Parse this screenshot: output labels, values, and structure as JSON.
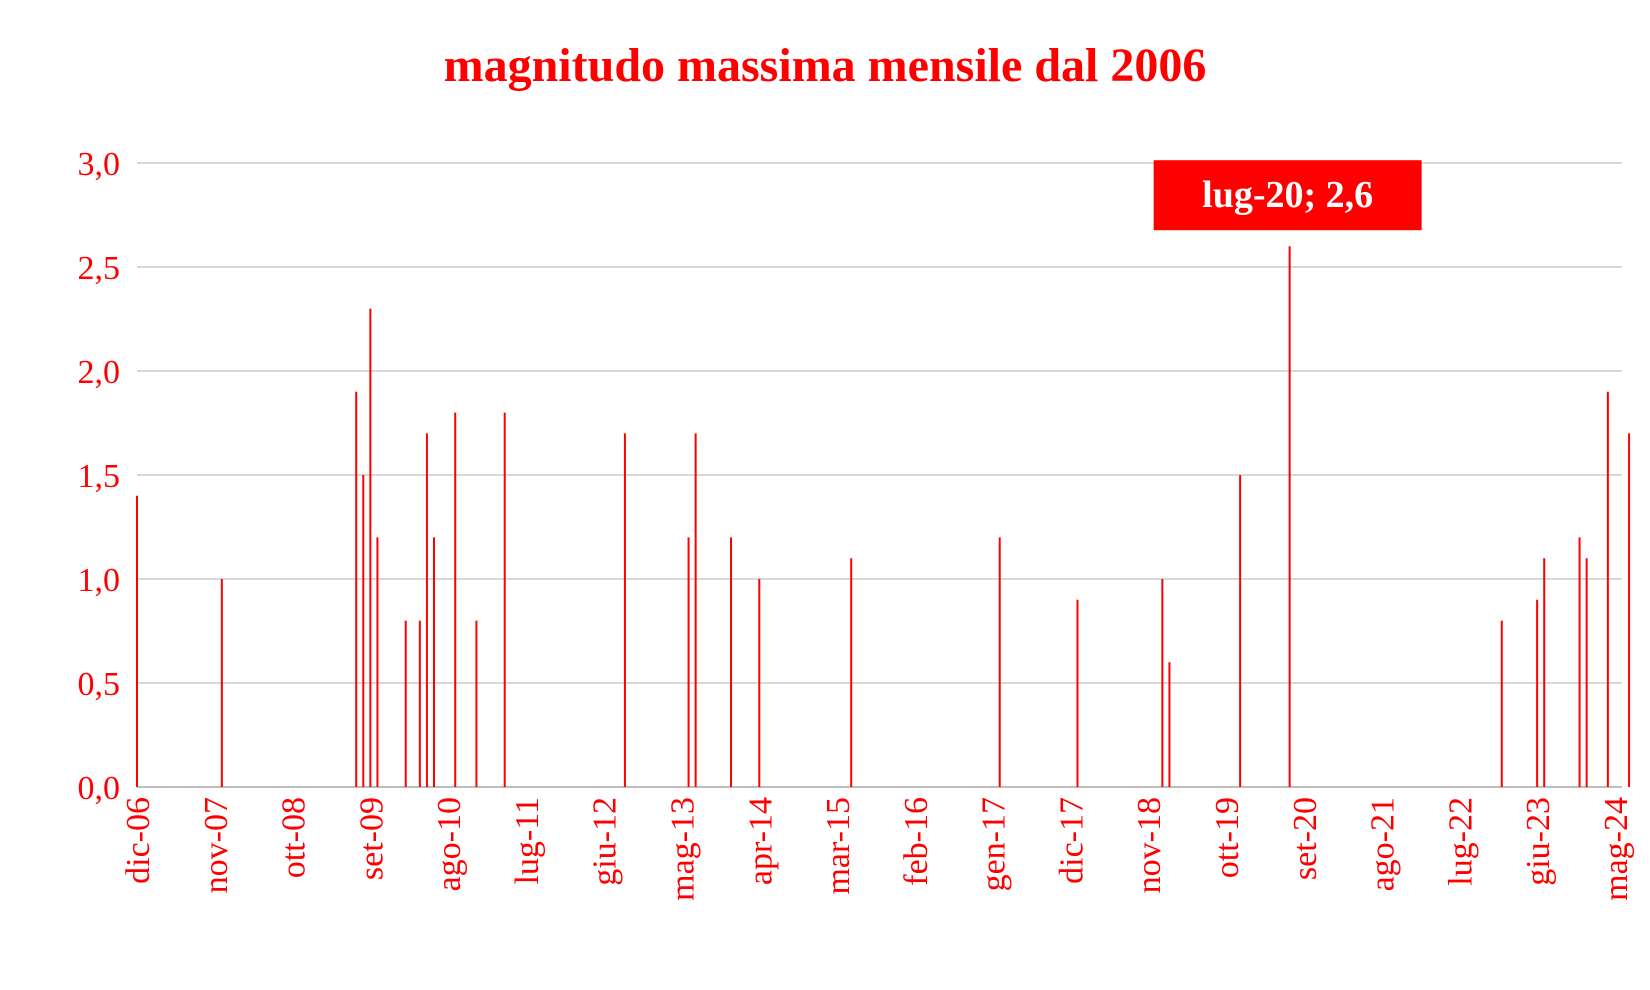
{
  "chart_data": {
    "type": "bar",
    "title": "magnitudo massima mensile dal 2006",
    "xlabel": "",
    "ylabel": "",
    "ylim": [
      0,
      3.0
    ],
    "y_ticks": [
      "0,0",
      "0,5",
      "1,0",
      "1,5",
      "2,0",
      "2,5",
      "3,0"
    ],
    "y_tick_values": [
      0,
      0.5,
      1.0,
      1.5,
      2.0,
      2.5,
      3.0
    ],
    "x_range": [
      "2006-12",
      "2024-06"
    ],
    "x_ticks": [
      "dic-06",
      "nov-07",
      "ott-08",
      "set-09",
      "ago-10",
      "lug-11",
      "giu-12",
      "mag-13",
      "apr-14",
      "mar-15",
      "feb-16",
      "gen-17",
      "dic-17",
      "nov-18",
      "ott-19",
      "set-20",
      "ago-21",
      "lug-22",
      "giu-23",
      "mag-24"
    ],
    "x_tick_dates": [
      "2006-12",
      "2007-11",
      "2008-10",
      "2009-09",
      "2010-08",
      "2011-07",
      "2012-06",
      "2013-05",
      "2014-04",
      "2015-03",
      "2016-02",
      "2017-01",
      "2017-12",
      "2018-11",
      "2019-10",
      "2020-09",
      "2021-08",
      "2022-07",
      "2023-06",
      "2024-05"
    ],
    "grid": true,
    "color": "#ff0000",
    "series": [
      {
        "points": [
          {
            "x": "2006-12",
            "y": 1.4
          },
          {
            "x": "2007-12",
            "y": 1.0
          },
          {
            "x": "2009-07",
            "y": 1.9
          },
          {
            "x": "2009-08",
            "y": 1.5
          },
          {
            "x": "2009-09",
            "y": 2.3
          },
          {
            "x": "2009-10",
            "y": 1.2
          },
          {
            "x": "2010-02",
            "y": 0.8
          },
          {
            "x": "2010-04",
            "y": 0.8
          },
          {
            "x": "2010-05",
            "y": 1.7
          },
          {
            "x": "2010-06",
            "y": 1.2
          },
          {
            "x": "2010-09",
            "y": 1.8
          },
          {
            "x": "2010-12",
            "y": 0.8
          },
          {
            "x": "2011-04",
            "y": 1.8
          },
          {
            "x": "2012-09",
            "y": 1.7
          },
          {
            "x": "2013-06",
            "y": 1.2
          },
          {
            "x": "2013-07",
            "y": 1.7
          },
          {
            "x": "2013-12",
            "y": 1.2
          },
          {
            "x": "2014-04",
            "y": 1.0
          },
          {
            "x": "2015-05",
            "y": 1.1
          },
          {
            "x": "2017-02",
            "y": 1.2
          },
          {
            "x": "2018-01",
            "y": 0.9
          },
          {
            "x": "2019-01",
            "y": 1.0
          },
          {
            "x": "2019-02",
            "y": 0.6
          },
          {
            "x": "2019-12",
            "y": 1.5
          },
          {
            "x": "2020-07",
            "y": 2.6
          },
          {
            "x": "2023-01",
            "y": 0.8
          },
          {
            "x": "2023-06",
            "y": 0.9
          },
          {
            "x": "2023-07",
            "y": 1.1
          },
          {
            "x": "2023-12",
            "y": 1.2
          },
          {
            "x": "2024-01",
            "y": 1.1
          },
          {
            "x": "2024-04",
            "y": 1.9
          },
          {
            "x": "2024-07",
            "y": 1.7
          }
        ]
      }
    ],
    "annotation": {
      "label": "lug-20; 2,6",
      "x": "2020-07",
      "y": 2.6
    }
  }
}
